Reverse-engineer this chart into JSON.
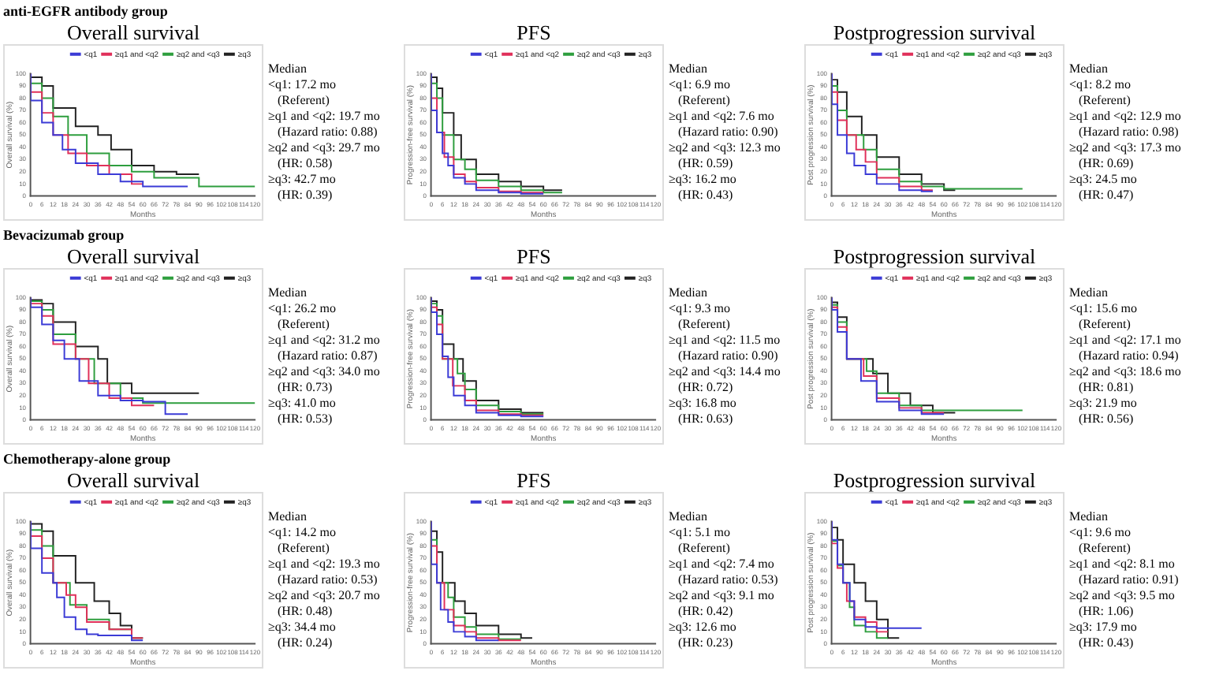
{
  "chart_data": [
    {
      "type": "step",
      "subtitle": "anti-EGFR antibody group",
      "title": "Overall survival",
      "xlabel": "Months",
      "ylabel": "Overall survival (%)",
      "xlim": [
        0,
        120
      ],
      "xticks": [
        0,
        6,
        12,
        18,
        24,
        30,
        36,
        42,
        48,
        54,
        60,
        66,
        72,
        78,
        84,
        90,
        96,
        102,
        108,
        114,
        120
      ],
      "ylim": [
        0,
        100
      ],
      "yticks": [
        0,
        10,
        20,
        30,
        40,
        50,
        60,
        70,
        80,
        90,
        100
      ],
      "legend": "top right",
      "series": [
        {
          "name": "<q1",
          "color": "#3b3bd6",
          "x": [
            0,
            6,
            12,
            17,
            24,
            36,
            48,
            60,
            72,
            84
          ],
          "values": [
            100,
            78,
            60,
            50,
            38,
            27,
            18,
            12,
            8,
            8
          ]
        },
        {
          "name": "≥q1 and <q2",
          "color": "#e0305a",
          "x": [
            0,
            6,
            12,
            20,
            30,
            42,
            54,
            60
          ],
          "values": [
            100,
            85,
            68,
            50,
            35,
            25,
            18,
            10
          ]
        },
        {
          "name": "≥q2 and <q3",
          "color": "#2e9e3e",
          "x": [
            0,
            6,
            12,
            20,
            30,
            42,
            54,
            66,
            90,
            120
          ],
          "values": [
            100,
            92,
            80,
            65,
            50,
            35,
            25,
            20,
            15,
            8
          ]
        },
        {
          "name": "≥q3",
          "color": "#222222",
          "x": [
            0,
            6,
            12,
            24,
            36,
            43,
            54,
            66,
            78,
            90
          ],
          "values": [
            100,
            97,
            90,
            72,
            57,
            50,
            38,
            25,
            20,
            18
          ]
        }
      ],
      "annotations": [
        "Median",
        "<q1: 17.2 mo",
        "(Referent)",
        "≥q1 and <q2: 19.7 mo",
        "(Hazard ratio: 0.88)",
        "≥q2 and <q3: 29.7 mo",
        "(HR: 0.58)",
        "≥q3: 42.7 mo",
        "(HR: 0.39)"
      ]
    },
    {
      "type": "step",
      "title": "PFS",
      "xlabel": "Months",
      "ylabel": "Progression-free survival (%)",
      "xlim": [
        0,
        120
      ],
      "xticks": [
        0,
        6,
        12,
        18,
        24,
        30,
        36,
        42,
        48,
        54,
        60,
        66,
        72,
        78,
        84,
        90,
        96,
        102,
        108,
        114,
        120
      ],
      "ylim": [
        0,
        100
      ],
      "yticks": [
        0,
        10,
        20,
        30,
        40,
        50,
        60,
        70,
        80,
        90,
        100
      ],
      "legend": "top right",
      "series": [
        {
          "name": "<q1",
          "color": "#3b3bd6",
          "x": [
            0,
            3,
            6,
            9,
            12,
            18,
            24,
            36,
            48,
            60
          ],
          "values": [
            100,
            70,
            52,
            35,
            25,
            15,
            10,
            5,
            3,
            2
          ]
        },
        {
          "name": "≥q1 and <q2",
          "color": "#e0305a",
          "x": [
            0,
            3,
            7,
            12,
            18,
            24,
            36,
            48,
            60
          ],
          "values": [
            100,
            80,
            52,
            32,
            18,
            12,
            7,
            4,
            3
          ]
        },
        {
          "name": "≥q2 and <q3",
          "color": "#2e9e3e",
          "x": [
            0,
            3,
            6,
            12,
            18,
            24,
            36,
            48,
            60,
            70
          ],
          "values": [
            100,
            92,
            80,
            50,
            30,
            22,
            13,
            8,
            5,
            3
          ]
        },
        {
          "name": "≥q3",
          "color": "#222222",
          "x": [
            0,
            3,
            6,
            12,
            16,
            24,
            36,
            48,
            60,
            70
          ],
          "values": [
            100,
            97,
            88,
            68,
            50,
            30,
            18,
            12,
            8,
            5
          ]
        }
      ],
      "annotations": [
        "Median",
        "<q1: 6.9 mo",
        "(Referent)",
        "≥q1 and <q2: 7.6 mo",
        "(Hazard ratio: 0.90)",
        "≥q2 and <q3: 12.3 mo",
        "(HR: 0.59)",
        "≥q3: 16.2 mo",
        "(HR: 0.43)"
      ]
    },
    {
      "type": "step",
      "title": "Postprogression survival",
      "xlabel": "Months",
      "ylabel": "Post progression survival (%)",
      "xlim": [
        0,
        120
      ],
      "xticks": [
        0,
        6,
        12,
        18,
        24,
        30,
        36,
        42,
        48,
        54,
        60,
        66,
        72,
        78,
        84,
        90,
        96,
        102,
        108,
        114,
        120
      ],
      "ylim": [
        0,
        100
      ],
      "yticks": [
        0,
        10,
        20,
        30,
        40,
        50,
        60,
        70,
        80,
        90,
        100
      ],
      "legend": "top right",
      "series": [
        {
          "name": "<q1",
          "color": "#3b3bd6",
          "x": [
            0,
            3,
            8,
            12,
            18,
            24,
            36,
            48,
            54
          ],
          "values": [
            100,
            75,
            50,
            35,
            25,
            18,
            10,
            5,
            4
          ]
        },
        {
          "name": "≥q1 and <q2",
          "color": "#e0305a",
          "x": [
            0,
            3,
            8,
            13,
            18,
            24,
            36,
            48,
            54
          ],
          "values": [
            100,
            85,
            62,
            50,
            38,
            28,
            15,
            8,
            5
          ]
        },
        {
          "name": "≥q2 and <q3",
          "color": "#2e9e3e",
          "x": [
            0,
            3,
            8,
            17,
            24,
            36,
            48,
            60,
            102
          ],
          "values": [
            100,
            90,
            70,
            50,
            38,
            22,
            12,
            8,
            6
          ]
        },
        {
          "name": "≥q3",
          "color": "#222222",
          "x": [
            0,
            3,
            8,
            16,
            24,
            36,
            48,
            60,
            66
          ],
          "values": [
            100,
            95,
            85,
            65,
            50,
            32,
            18,
            10,
            5
          ]
        }
      ],
      "annotations": [
        "Median",
        "<q1: 8.2 mo",
        "(Referent)",
        "≥q1 and <q2: 12.9 mo",
        "(Hazard ratio: 0.98)",
        "≥q2 and <q3: 17.3 mo",
        "(HR: 0.69)",
        "≥q3: 24.5 mo",
        "(HR: 0.47)"
      ]
    },
    {
      "type": "step",
      "subtitle": "Bevacizumab group",
      "title": "Overall survival",
      "xlabel": "Months",
      "ylabel": "Overall survival (%)",
      "xlim": [
        0,
        120
      ],
      "xticks": [
        0,
        6,
        12,
        18,
        24,
        30,
        36,
        42,
        48,
        54,
        60,
        66,
        72,
        78,
        84,
        90,
        96,
        102,
        108,
        114,
        120
      ],
      "ylim": [
        0,
        100
      ],
      "yticks": [
        0,
        10,
        20,
        30,
        40,
        50,
        60,
        70,
        80,
        90,
        100
      ],
      "legend": "top right",
      "series": [
        {
          "name": "<q1",
          "color": "#3b3bd6",
          "x": [
            0,
            6,
            12,
            18,
            26,
            36,
            48,
            60,
            72,
            78,
            84
          ],
          "values": [
            100,
            92,
            78,
            65,
            50,
            32,
            20,
            16,
            15,
            5,
            5
          ]
        },
        {
          "name": "≥q1 and <q2",
          "color": "#e0305a",
          "x": [
            0,
            6,
            12,
            24,
            31,
            42,
            54,
            66
          ],
          "values": [
            100,
            95,
            85,
            62,
            50,
            30,
            18,
            12
          ]
        },
        {
          "name": "≥q2 and <q3",
          "color": "#2e9e3e",
          "x": [
            0,
            6,
            12,
            24,
            34,
            48,
            60,
            72,
            120
          ],
          "values": [
            100,
            97,
            90,
            70,
            50,
            30,
            18,
            14,
            14
          ]
        },
        {
          "name": "≥q3",
          "color": "#222222",
          "x": [
            0,
            6,
            12,
            24,
            36,
            41,
            54,
            66,
            90
          ],
          "values": [
            100,
            98,
            95,
            80,
            60,
            50,
            30,
            22,
            22
          ]
        }
      ],
      "annotations": [
        "Median",
        "<q1: 26.2 mo",
        "(Referent)",
        "≥q1 and <q2: 31.2 mo",
        "(Hazard ratio: 0.87)",
        "≥q2 and <q3: 34.0 mo",
        "(HR: 0.73)",
        "≥q3: 41.0 mo",
        "(HR: 0.53)"
      ]
    },
    {
      "type": "step",
      "title": "PFS",
      "xlabel": "Months",
      "ylabel": "Progression-free survival (%)",
      "xlim": [
        0,
        120
      ],
      "xticks": [
        0,
        6,
        12,
        18,
        24,
        30,
        36,
        42,
        48,
        54,
        60,
        66,
        72,
        78,
        84,
        90,
        96,
        102,
        108,
        114,
        120
      ],
      "ylim": [
        0,
        100
      ],
      "yticks": [
        0,
        10,
        20,
        30,
        40,
        50,
        60,
        70,
        80,
        90,
        100
      ],
      "legend": "top right",
      "series": [
        {
          "name": "<q1",
          "color": "#3b3bd6",
          "x": [
            0,
            3,
            6,
            9,
            12,
            18,
            24,
            36,
            48,
            60
          ],
          "values": [
            100,
            88,
            70,
            52,
            35,
            20,
            12,
            6,
            4,
            3
          ]
        },
        {
          "name": "≥q1 and <q2",
          "color": "#e0305a",
          "x": [
            0,
            3,
            6,
            11.5,
            18,
            24,
            36,
            48,
            60
          ],
          "values": [
            100,
            92,
            78,
            50,
            28,
            16,
            8,
            5,
            4
          ]
        },
        {
          "name": "≥q2 and <q3",
          "color": "#2e9e3e",
          "x": [
            0,
            3,
            6,
            14,
            18,
            24,
            36,
            48,
            60
          ],
          "values": [
            100,
            95,
            85,
            50,
            38,
            25,
            12,
            7,
            5
          ]
        },
        {
          "name": "≥q3",
          "color": "#222222",
          "x": [
            0,
            3,
            6,
            12,
            17,
            24,
            36,
            48,
            60
          ],
          "values": [
            100,
            97,
            90,
            62,
            50,
            32,
            16,
            9,
            6
          ]
        }
      ],
      "annotations": [
        "Median",
        "<q1: 9.3 mo",
        "(Referent)",
        "≥q1 and <q2: 11.5 mo",
        "(Hazard ratio: 0.90)",
        "≥q2 and <q3: 14.4 mo",
        "(HR: 0.72)",
        "≥q3: 16.8 mo",
        "(HR: 0.63)"
      ]
    },
    {
      "type": "step",
      "title": "Postprogression survival",
      "xlabel": "Months",
      "ylabel": "Post progression survival (%)",
      "xlim": [
        0,
        120
      ],
      "xticks": [
        0,
        6,
        12,
        18,
        24,
        30,
        36,
        42,
        48,
        54,
        60,
        66,
        72,
        78,
        84,
        90,
        96,
        102,
        108,
        114,
        120
      ],
      "ylim": [
        0,
        100
      ],
      "yticks": [
        0,
        10,
        20,
        30,
        40,
        50,
        60,
        70,
        80,
        90,
        100
      ],
      "legend": "top right",
      "series": [
        {
          "name": "<q1",
          "color": "#3b3bd6",
          "x": [
            0,
            3,
            8,
            15.6,
            24,
            36,
            48,
            60
          ],
          "values": [
            100,
            90,
            72,
            50,
            32,
            15,
            8,
            5
          ]
        },
        {
          "name": "≥q1 and <q2",
          "color": "#e0305a",
          "x": [
            0,
            3,
            8,
            17,
            24,
            36,
            48,
            60
          ],
          "values": [
            100,
            92,
            76,
            50,
            36,
            18,
            10,
            6
          ]
        },
        {
          "name": "≥q2 and <q3",
          "color": "#2e9e3e",
          "x": [
            0,
            3,
            8,
            18.6,
            24,
            36,
            48,
            60,
            102
          ],
          "values": [
            100,
            94,
            80,
            50,
            40,
            22,
            12,
            8,
            8
          ]
        },
        {
          "name": "≥q3",
          "color": "#222222",
          "x": [
            0,
            3,
            8,
            22,
            30,
            42,
            54,
            66
          ],
          "values": [
            100,
            96,
            84,
            50,
            38,
            22,
            12,
            6
          ]
        }
      ],
      "annotations": [
        "Median",
        "<q1: 15.6 mo",
        "(Referent)",
        "≥q1 and <q2: 17.1 mo",
        "(Hazard ratio: 0.94)",
        "≥q2 and <q3: 18.6 mo",
        "(HR: 0.81)",
        "≥q3: 21.9 mo",
        "(HR: 0.56)"
      ]
    },
    {
      "type": "step",
      "subtitle": "Chemotherapy-alone group",
      "title": "Overall survival",
      "xlabel": "Months",
      "ylabel": "Overall survival (%)",
      "xlim": [
        0,
        120
      ],
      "xticks": [
        0,
        6,
        12,
        18,
        24,
        30,
        36,
        42,
        48,
        54,
        60,
        66,
        72,
        78,
        84,
        90,
        96,
        102,
        108,
        114,
        120
      ],
      "ylim": [
        0,
        100
      ],
      "yticks": [
        0,
        10,
        20,
        30,
        40,
        50,
        60,
        70,
        80,
        90,
        100
      ],
      "legend": "top right",
      "series": [
        {
          "name": "<q1",
          "color": "#3b3bd6",
          "x": [
            0,
            6,
            12,
            14,
            18,
            24,
            30,
            36,
            54,
            60
          ],
          "values": [
            100,
            78,
            58,
            50,
            38,
            22,
            12,
            8,
            7,
            3
          ]
        },
        {
          "name": "≥q1 and <q2",
          "color": "#e0305a",
          "x": [
            0,
            6,
            12,
            19,
            24,
            30,
            42,
            54,
            60
          ],
          "values": [
            100,
            88,
            70,
            50,
            40,
            30,
            18,
            12,
            5
          ]
        },
        {
          "name": "≥q2 and <q3",
          "color": "#2e9e3e",
          "x": [
            0,
            6,
            12,
            21,
            30,
            42,
            54,
            60
          ],
          "values": [
            100,
            93,
            80,
            50,
            32,
            20,
            12,
            5
          ]
        },
        {
          "name": "≥q3",
          "color": "#222222",
          "x": [
            0,
            6,
            12,
            24,
            34,
            42,
            48,
            54,
            60
          ],
          "values": [
            100,
            98,
            92,
            72,
            50,
            35,
            25,
            15,
            5
          ]
        }
      ],
      "annotations": [
        "Median",
        "<q1: 14.2 mo",
        "(Referent)",
        "≥q1 and <q2: 19.3 mo",
        "(Hazard ratio: 0.53)",
        "≥q2 and <q3: 20.7 mo",
        "(HR: 0.48)",
        "≥q3: 34.4 mo",
        "(HR: 0.24)"
      ]
    },
    {
      "type": "step",
      "title": "PFS",
      "xlabel": "Months",
      "ylabel": "Progression-free survival (%)",
      "xlim": [
        0,
        120
      ],
      "xticks": [
        0,
        6,
        12,
        18,
        24,
        30,
        36,
        42,
        48,
        54,
        60,
        66,
        72,
        78,
        84,
        90,
        96,
        102,
        108,
        114,
        120
      ],
      "ylim": [
        0,
        100
      ],
      "yticks": [
        0,
        10,
        20,
        30,
        40,
        50,
        60,
        70,
        80,
        90,
        100
      ],
      "legend": "top right",
      "series": [
        {
          "name": "<q1",
          "color": "#3b3bd6",
          "x": [
            0,
            3,
            5,
            9,
            12,
            18,
            24,
            36
          ],
          "values": [
            100,
            65,
            50,
            28,
            18,
            10,
            6,
            3
          ]
        },
        {
          "name": "≥q1 and <q2",
          "color": "#e0305a",
          "x": [
            0,
            3,
            7,
            12,
            18,
            24,
            36,
            48
          ],
          "values": [
            100,
            80,
            50,
            28,
            15,
            10,
            5,
            3
          ]
        },
        {
          "name": "≥q2 and <q3",
          "color": "#2e9e3e",
          "x": [
            0,
            3,
            9,
            12,
            18,
            24,
            36,
            48
          ],
          "values": [
            100,
            85,
            50,
            38,
            22,
            14,
            8,
            4
          ]
        },
        {
          "name": "≥q3",
          "color": "#222222",
          "x": [
            0,
            3,
            6,
            12.6,
            18,
            24,
            36,
            48,
            54
          ],
          "values": [
            100,
            92,
            75,
            50,
            35,
            25,
            15,
            8,
            5
          ]
        }
      ],
      "annotations": [
        "Median",
        "<q1: 5.1 mo",
        "(Referent)",
        "≥q1 and <q2: 7.4 mo",
        "(Hazard ratio: 0.53)",
        "≥q2 and <q3: 9.1 mo",
        "(HR: 0.42)",
        "≥q3: 12.6 mo",
        "(HR: 0.23)"
      ]
    },
    {
      "type": "step",
      "title": "Postprogression survival",
      "xlabel": "Months",
      "ylabel": "Post progression survival (%)",
      "xlim": [
        0,
        120
      ],
      "xticks": [
        0,
        6,
        12,
        18,
        24,
        30,
        36,
        42,
        48,
        54,
        60,
        66,
        72,
        78,
        84,
        90,
        96,
        102,
        108,
        114,
        120
      ],
      "ylim": [
        0,
        100
      ],
      "yticks": [
        0,
        10,
        20,
        30,
        40,
        50,
        60,
        70,
        80,
        90,
        100
      ],
      "legend": "top right",
      "series": [
        {
          "name": "<q1",
          "color": "#3b3bd6",
          "x": [
            0,
            3,
            6,
            9.6,
            12,
            18,
            24,
            30,
            48
          ],
          "values": [
            100,
            85,
            65,
            50,
            35,
            20,
            14,
            13,
            13
          ]
        },
        {
          "name": "≥q1 and <q2",
          "color": "#e0305a",
          "x": [
            0,
            3,
            6,
            8,
            12,
            18,
            24,
            30
          ],
          "values": [
            100,
            82,
            62,
            50,
            35,
            22,
            18,
            10
          ]
        },
        {
          "name": "≥q2 and <q3",
          "color": "#2e9e3e",
          "x": [
            0,
            3,
            6,
            9.5,
            12,
            18,
            24,
            30
          ],
          "values": [
            100,
            84,
            64,
            50,
            30,
            15,
            10,
            5
          ]
        },
        {
          "name": "≥q3",
          "color": "#222222",
          "x": [
            0,
            3,
            6,
            12,
            18,
            24,
            30,
            36
          ],
          "values": [
            100,
            95,
            85,
            65,
            50,
            35,
            20,
            5
          ]
        }
      ],
      "annotations": [
        "Median",
        "<q1: 9.6 mo",
        "(Referent)",
        "≥q1 and <q2: 8.1 mo",
        "(Hazard ratio: 0.91)",
        "≥q2 and <q3: 9.5 mo",
        "(HR: 1.06)",
        "≥q3: 17.9 mo",
        "(HR: 0.43)"
      ]
    }
  ]
}
